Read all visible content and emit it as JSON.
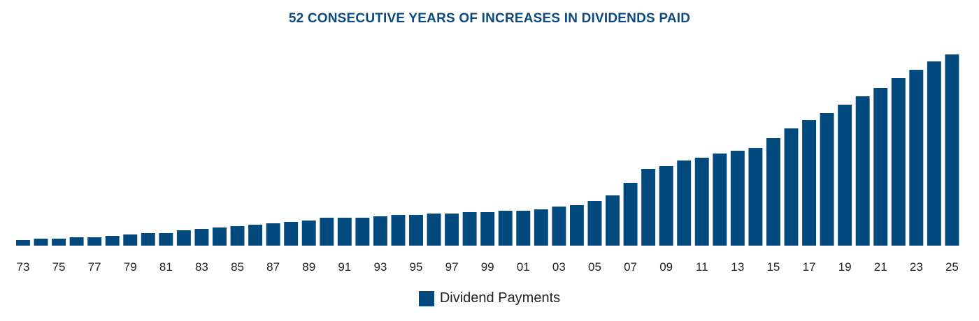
{
  "chart_data": {
    "type": "bar",
    "title": "52 CONSECUTIVE YEARS OF INCREASES IN DIVIDENDS PAID",
    "xlabel": "",
    "ylabel": "",
    "grid": false,
    "legend_position": "bottom",
    "color": "#02497e",
    "categories": [
      "73",
      "74",
      "75",
      "76",
      "77",
      "78",
      "79",
      "80",
      "81",
      "82",
      "83",
      "84",
      "85",
      "86",
      "87",
      "88",
      "89",
      "90",
      "91",
      "92",
      "93",
      "94",
      "95",
      "96",
      "97",
      "98",
      "99",
      "00",
      "01",
      "02",
      "03",
      "04",
      "05",
      "06",
      "07",
      "08",
      "09",
      "10",
      "11",
      "12",
      "13",
      "14",
      "15",
      "16",
      "17",
      "18",
      "19",
      "20",
      "21",
      "22",
      "23",
      "24",
      "25"
    ],
    "tick_labels": [
      "73",
      "75",
      "77",
      "79",
      "81",
      "83",
      "85",
      "87",
      "89",
      "91",
      "93",
      "95",
      "97",
      "99",
      "01",
      "03",
      "05",
      "07",
      "09",
      "11",
      "13",
      "15",
      "17",
      "19",
      "21",
      "23",
      "25"
    ],
    "series": [
      {
        "name": "Dividend Payments",
        "values": [
          8,
          10,
          10,
          12,
          12,
          14,
          16,
          18,
          18,
          22,
          24,
          26,
          28,
          30,
          32,
          34,
          36,
          40,
          40,
          40,
          42,
          44,
          44,
          46,
          46,
          48,
          48,
          50,
          50,
          52,
          56,
          58,
          64,
          72,
          90,
          110,
          114,
          122,
          126,
          132,
          136,
          140,
          154,
          168,
          180,
          190,
          202,
          214,
          226,
          240,
          252,
          264,
          274
        ]
      }
    ]
  }
}
